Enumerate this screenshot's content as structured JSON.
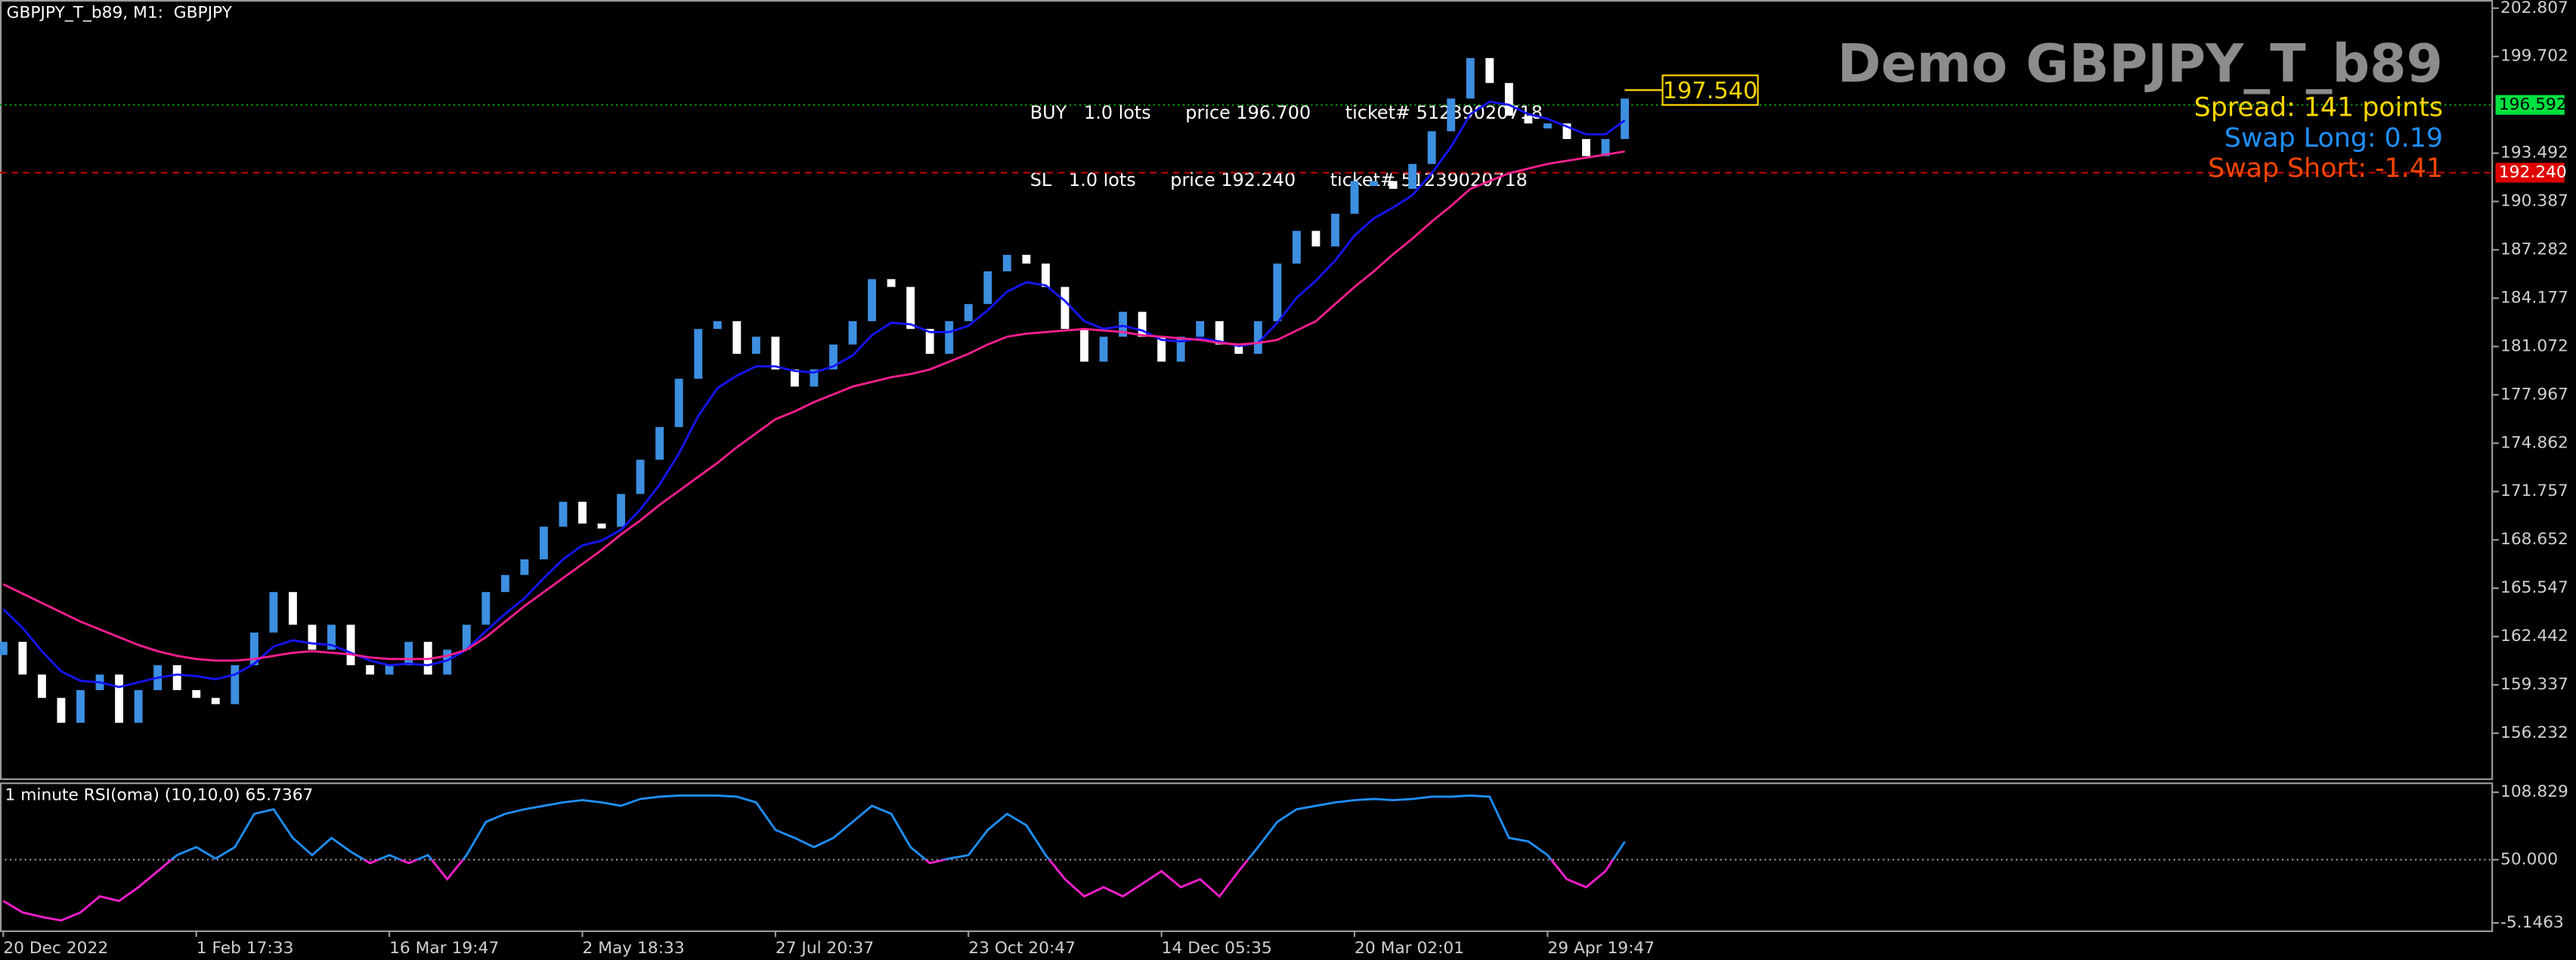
{
  "chart_data": [
    {
      "type": "renko",
      "title": "GBPJPY_T_b89, M1:  GBPJPY",
      "watermark": "Demo GBPJPY_T_b89",
      "info": [
        {
          "text": "Spread: 141 points",
          "color": "#ffd700"
        },
        {
          "text": "Swap Long: 0.19",
          "color": "#1e90ff"
        },
        {
          "text": "Swap Short: -1.41",
          "color": "#ff4500"
        }
      ],
      "orders": [
        "BUY   1.0 lots      price 196.700      ticket# 51239020718",
        "SL   1.0 lots      price 192.240      ticket# 51239020718"
      ],
      "categories": [
        "20 Dec 2022",
        null,
        null,
        null,
        null,
        null,
        null,
        null,
        null,
        null,
        "1 Feb 17:33",
        null,
        null,
        null,
        null,
        null,
        null,
        null,
        null,
        null,
        "16 Mar 19:47",
        null,
        null,
        null,
        null,
        null,
        null,
        null,
        null,
        null,
        "2 May 18:33",
        null,
        null,
        null,
        null,
        null,
        null,
        null,
        null,
        null,
        "27 Jul 20:37",
        null,
        null,
        null,
        null,
        null,
        null,
        null,
        null,
        null,
        "23 Oct 20:47",
        null,
        null,
        null,
        null,
        null,
        null,
        null,
        null,
        null,
        "14 Dec 05:35",
        null,
        null,
        null,
        null,
        null,
        null,
        null,
        null,
        null,
        "20 Mar 02:01",
        null,
        null,
        null,
        null,
        null,
        null,
        null,
        null,
        null,
        "29 Apr 19:47",
        null,
        null,
        null,
        null
      ],
      "values": [
        162.1,
        160.0,
        158.5,
        156.9,
        159.0,
        160.0,
        156.9,
        159.0,
        160.6,
        159.0,
        158.5,
        158.1,
        160.6,
        162.7,
        165.3,
        163.2,
        161.6,
        163.2,
        160.6,
        160.0,
        160.6,
        162.1,
        160.0,
        161.6,
        163.2,
        165.3,
        166.4,
        167.4,
        169.5,
        171.1,
        169.7,
        169.5,
        171.6,
        173.8,
        175.9,
        179.0,
        182.2,
        182.7,
        180.6,
        181.7,
        179.6,
        178.5,
        179.6,
        181.2,
        182.7,
        185.4,
        184.9,
        182.2,
        180.6,
        182.7,
        183.8,
        185.9,
        186.96,
        186.4,
        184.9,
        182.2,
        180.1,
        181.7,
        183.3,
        181.7,
        180.1,
        181.7,
        182.7,
        181.2,
        180.6,
        182.7,
        186.4,
        188.5,
        187.5,
        189.6,
        191.7,
        191.7,
        191.2,
        192.8,
        194.9,
        197.0,
        199.6,
        198.0,
        195.9,
        195.4,
        195.4,
        194.4,
        193.3,
        194.4,
        197.0
      ],
      "up_color": "#3d8fe0",
      "down_color": "#ffffff",
      "ma_fast": {
        "color": "#1515ff",
        "values": [
          164.2,
          163.0,
          161.5,
          160.2,
          159.6,
          159.5,
          159.2,
          159.5,
          159.8,
          160.0,
          159.9,
          159.7,
          160.0,
          160.7,
          161.8,
          162.2,
          162.0,
          161.9,
          161.4,
          160.9,
          160.6,
          160.7,
          160.6,
          160.9,
          161.6,
          162.8,
          163.9,
          164.9,
          166.2,
          167.4,
          168.3,
          168.6,
          169.3,
          170.6,
          172.2,
          174.2,
          176.6,
          178.4,
          179.2,
          179.8,
          179.8,
          179.5,
          179.4,
          179.8,
          180.5,
          181.8,
          182.6,
          182.5,
          182.0,
          182.0,
          182.4,
          183.4,
          184.6,
          185.2,
          185.0,
          184.0,
          182.7,
          182.2,
          182.4,
          182.1,
          181.5,
          181.4,
          181.6,
          181.4,
          181.1,
          181.3,
          182.6,
          184.2,
          185.3,
          186.6,
          188.2,
          189.3,
          190.0,
          190.8,
          192.2,
          193.9,
          196.0,
          196.8,
          196.6,
          196.0,
          195.7,
          195.2,
          194.7,
          194.7,
          195.6
        ]
      },
      "ma_slow": {
        "color": "#ff1f8f",
        "values": [
          165.8,
          165.2,
          164.6,
          164.0,
          163.4,
          162.9,
          162.4,
          161.9,
          161.5,
          161.2,
          161.0,
          160.9,
          160.9,
          161.0,
          161.2,
          161.4,
          161.5,
          161.4,
          161.3,
          161.1,
          161.0,
          161.0,
          161.0,
          161.2,
          161.6,
          162.4,
          163.4,
          164.4,
          165.3,
          166.2,
          167.1,
          168.0,
          169.0,
          169.9,
          170.9,
          171.8,
          172.7,
          173.6,
          174.6,
          175.5,
          176.4,
          176.9,
          177.5,
          178.0,
          178.5,
          178.8,
          179.1,
          179.3,
          179.6,
          180.1,
          180.6,
          181.2,
          181.7,
          181.9,
          182.0,
          182.1,
          182.2,
          182.1,
          182.0,
          181.8,
          181.7,
          181.6,
          181.5,
          181.3,
          181.2,
          181.3,
          181.5,
          182.1,
          182.7,
          183.8,
          184.9,
          185.9,
          187.0,
          188.0,
          189.1,
          190.1,
          191.2,
          191.7,
          192.2,
          192.5,
          192.8,
          193.0,
          193.2,
          193.4,
          193.6
        ]
      },
      "bid": 196.592,
      "stop_loss": {
        "value": 192.24,
        "label": "192.240"
      },
      "last_price": {
        "value": 197.54,
        "label": "197.540"
      },
      "ylim": [
        153.28,
        203.33
      ],
      "yticks": [
        202.807,
        199.702,
        193.492,
        190.387,
        187.282,
        184.177,
        181.072,
        177.967,
        174.862,
        171.757,
        168.652,
        165.547,
        162.442,
        159.337,
        156.232
      ]
    },
    {
      "type": "line",
      "title": "1 minute RSI(oma) (10,10,0) 65.7367",
      "up_color": "#1e90ff",
      "down_color": "#ff1fd0",
      "level": {
        "value": 50,
        "label": "50.000"
      },
      "values": [
        14,
        4,
        0,
        -3,
        4,
        18,
        14,
        26,
        40,
        54,
        61,
        51,
        61,
        90,
        94,
        69,
        54,
        69,
        57,
        47,
        54,
        47,
        54,
        33,
        54,
        83,
        90,
        94,
        97,
        100,
        102,
        100,
        97,
        103,
        105,
        106,
        106,
        106,
        105,
        100,
        76,
        69,
        61,
        69,
        83,
        97,
        90,
        61,
        47,
        51,
        54,
        76,
        90,
        80,
        54,
        33,
        18,
        26,
        18,
        29,
        40,
        26,
        33,
        18,
        40,
        61,
        83,
        94,
        97,
        100,
        102,
        103,
        102,
        103,
        105,
        105,
        106,
        105,
        69,
        66,
        54,
        33,
        26,
        40,
        65.7
      ],
      "ylim": [
        -11.7,
        117.4
      ],
      "yticks": [
        108.829,
        {
          "value": 50,
          "label": "50.000"
        },
        -5.1463
      ]
    }
  ]
}
